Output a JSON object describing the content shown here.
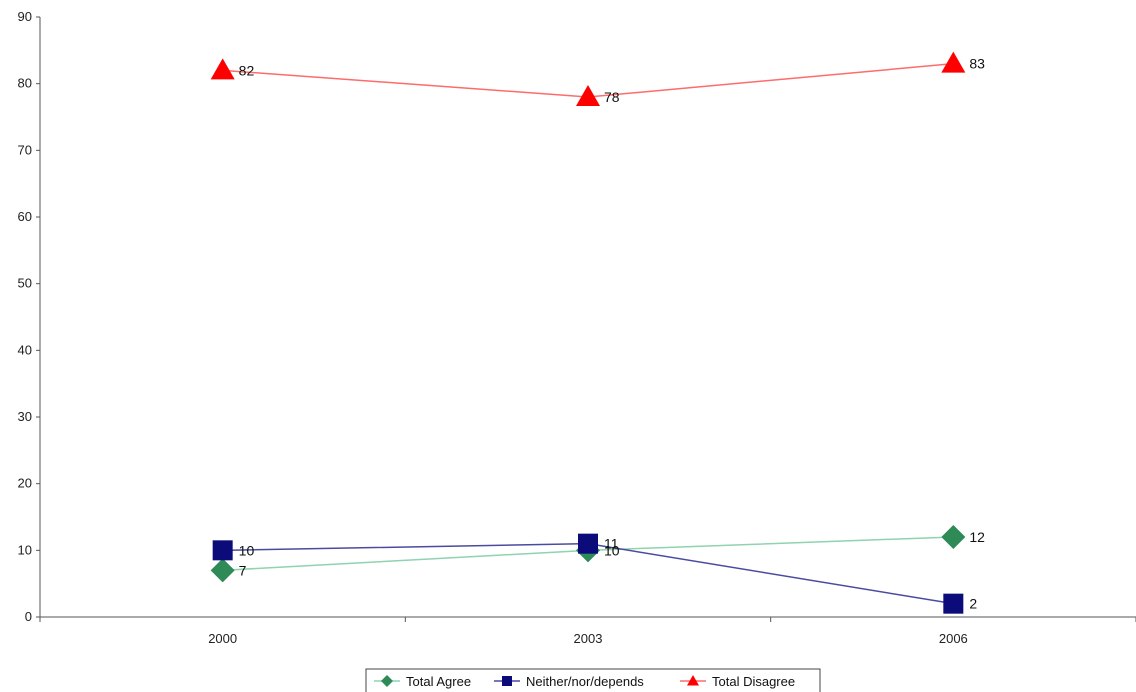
{
  "chart_data": {
    "type": "line",
    "categories": [
      "2000",
      "2003",
      "2006"
    ],
    "ylim": [
      0,
      90
    ],
    "yticks": [
      0,
      10,
      20,
      30,
      40,
      50,
      60,
      70,
      80,
      90
    ],
    "grid": false,
    "legend_position": "bottom",
    "series": [
      {
        "name": "Total Agree",
        "values": [
          7,
          10,
          12
        ],
        "color": "#2e8b57",
        "line_color": "#8fd3b0",
        "marker": "diamond"
      },
      {
        "name": "Neither/nor/depends",
        "values": [
          10,
          11,
          2
        ],
        "color": "#0b0b7a",
        "line_color": "#4a4aa0",
        "marker": "square"
      },
      {
        "name": "Total Disagree",
        "values": [
          82,
          78,
          83
        ],
        "color": "#ff0000",
        "line_color": "#ff6b6b",
        "marker": "triangle"
      }
    ]
  }
}
